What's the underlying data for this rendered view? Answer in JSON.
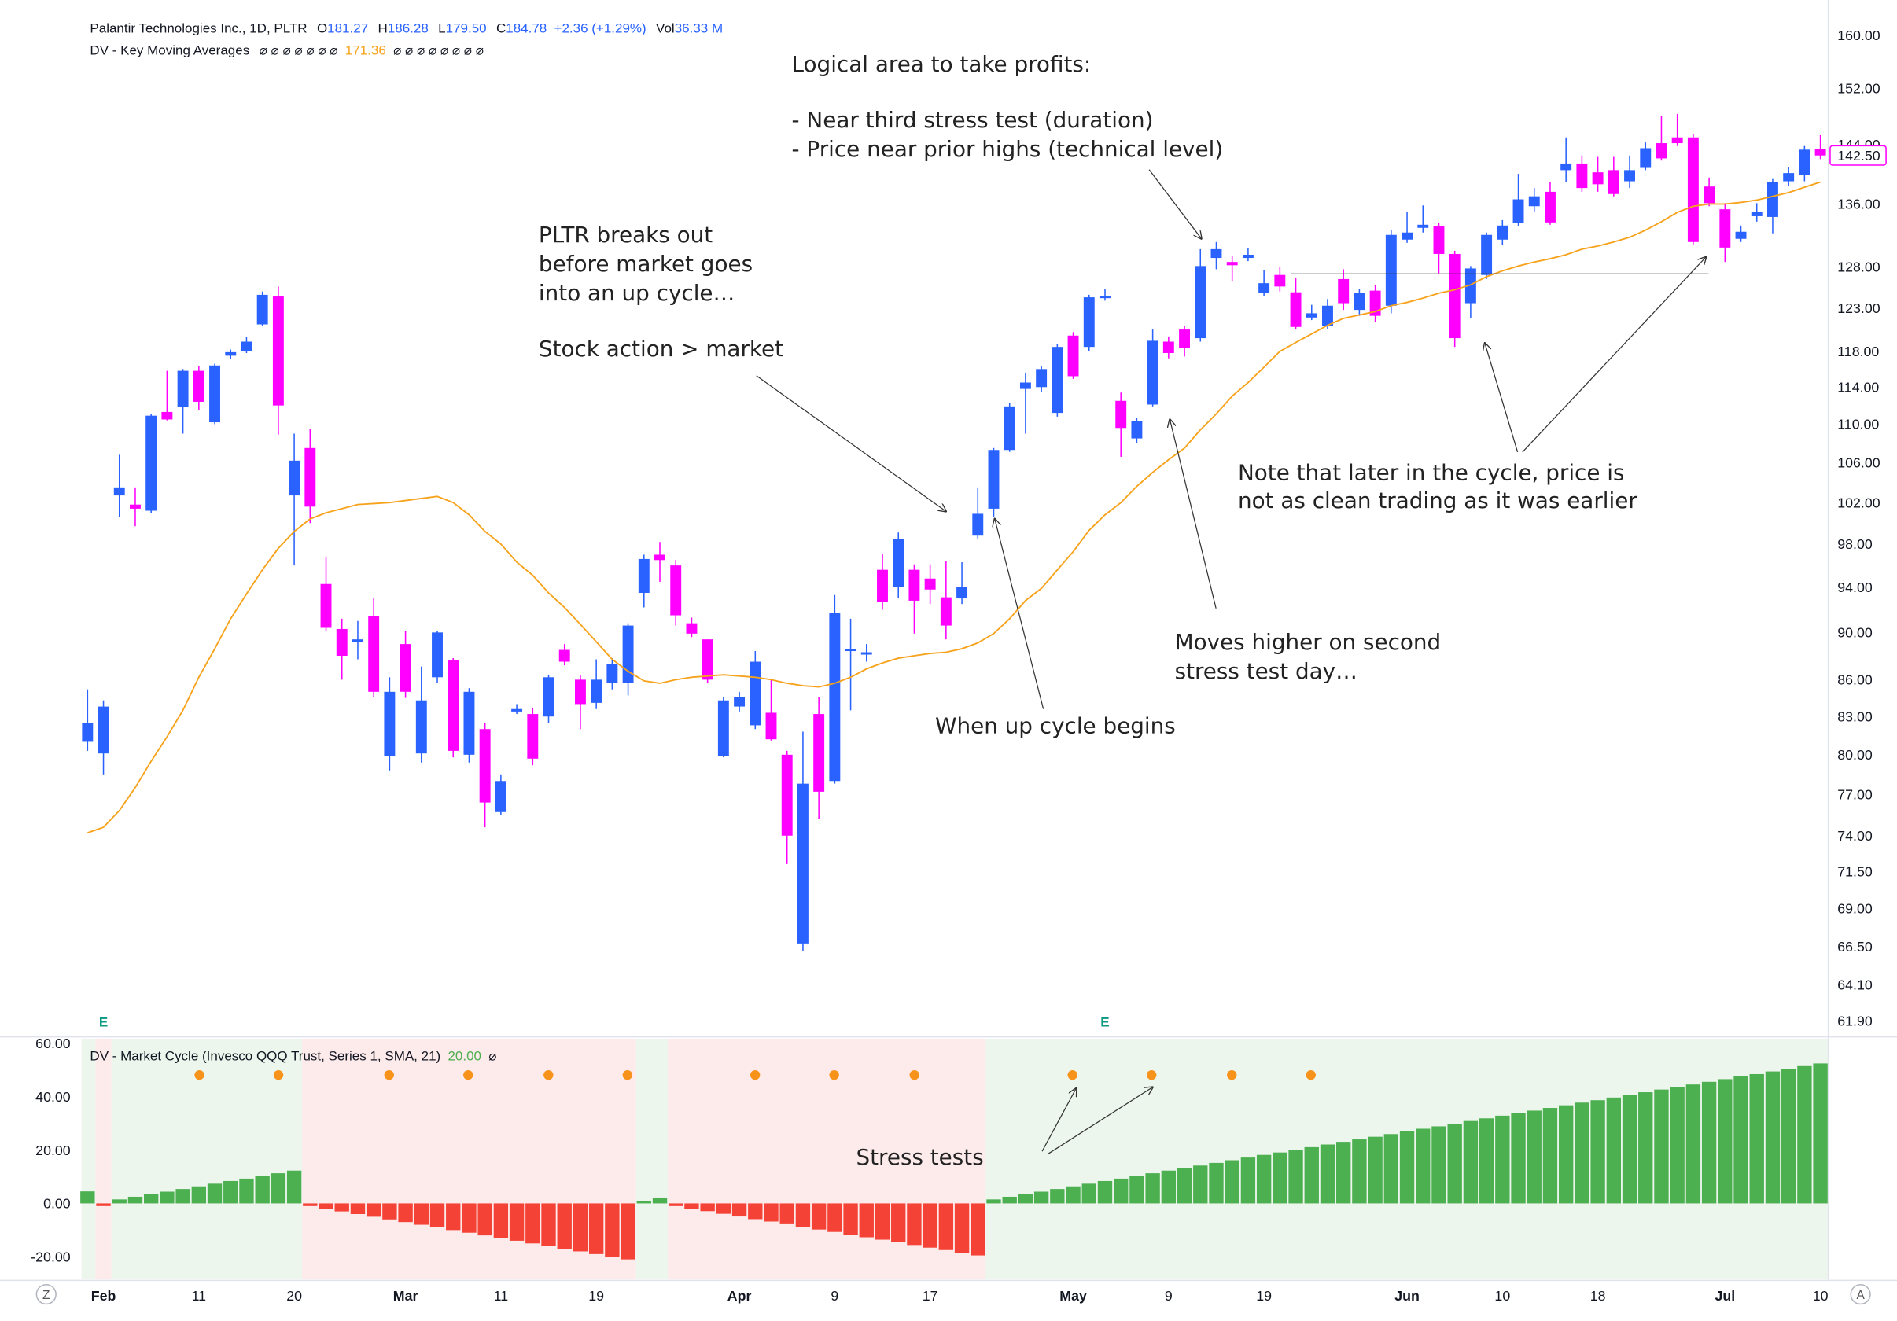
{
  "chart_data": {
    "type": "candlestick",
    "title": "Palantir Technologies Inc., 1D, PLTR",
    "legend_fields": [
      {
        "key": "O",
        "value": "181.27"
      },
      {
        "key": "H",
        "value": "186.28"
      },
      {
        "key": "L",
        "value": "179.50"
      },
      {
        "key": "C",
        "value": "184.78"
      }
    ],
    "change": "+2.36 (+1.29%)",
    "volume": {
      "key": "Vol",
      "value": "36.33 M"
    },
    "categories": [
      null,
      "Feb",
      null,
      null,
      null,
      null,
      null,
      "11",
      null,
      null,
      null,
      null,
      null,
      "20",
      null,
      null,
      null,
      null,
      null,
      null,
      "Mar",
      null,
      null,
      null,
      null,
      null,
      "11",
      null,
      null,
      null,
      null,
      null,
      "19",
      null,
      null,
      null,
      null,
      null,
      null,
      null,
      null,
      "Apr",
      null,
      null,
      null,
      null,
      null,
      "9",
      null,
      null,
      null,
      null,
      null,
      "17",
      null,
      null,
      null,
      null,
      null,
      null,
      null,
      null,
      "May",
      null,
      null,
      null,
      null,
      null,
      "9",
      null,
      null,
      null,
      null,
      null,
      "19",
      null,
      null,
      null,
      null,
      null,
      null,
      null,
      null,
      "Jun",
      null,
      null,
      null,
      null,
      null,
      "10",
      null,
      null,
      null,
      null,
      null,
      "18",
      null,
      null,
      null,
      null,
      null,
      null,
      null,
      "Jul",
      null,
      null,
      null,
      null,
      null,
      "10"
    ],
    "event_labels": [
      null,
      "E",
      null,
      null,
      null,
      null,
      null,
      null,
      null,
      null,
      null,
      null,
      null,
      null,
      null,
      null,
      null,
      null,
      null,
      null,
      null,
      null,
      null,
      null,
      null,
      null,
      null,
      null,
      null,
      null,
      null,
      null,
      null,
      null,
      null,
      null,
      null,
      null,
      null,
      null,
      null,
      null,
      null,
      null,
      null,
      null,
      null,
      null,
      null,
      null,
      null,
      null,
      null,
      null,
      null,
      null,
      null,
      null,
      null,
      null,
      null,
      null,
      null,
      null,
      "E",
      null,
      null,
      null,
      null,
      null,
      null,
      null,
      null,
      null,
      null,
      null,
      null,
      null,
      null,
      null,
      null,
      null,
      null,
      null,
      null,
      null,
      null,
      null,
      null,
      null,
      null,
      null,
      null,
      null,
      null,
      null,
      null,
      null,
      null,
      null,
      null,
      null,
      null,
      null,
      null,
      null,
      null,
      null,
      null,
      null
    ],
    "ohlc": {
      "up_color": "#2962ff",
      "down_color": "#ff00ff",
      "open": [
        81.0,
        80.1,
        102.7,
        101.8,
        101.2,
        111.3,
        111.8,
        115.8,
        110.2,
        117.5,
        118.0,
        121.1,
        124.4,
        102.7,
        107.5,
        94.3,
        90.3,
        89.2,
        91.4,
        79.9,
        89.0,
        80.1,
        86.2,
        87.6,
        80.0,
        82.0,
        75.7,
        83.4,
        83.2,
        83.0,
        88.5,
        86.0,
        84.1,
        85.7,
        85.7,
        93.5,
        97.0,
        96.0,
        90.8,
        89.4,
        79.9,
        83.8,
        82.3,
        83.3,
        80.0,
        66.7,
        83.2,
        78.0,
        88.4,
        88.1,
        95.6,
        94.0,
        95.6,
        94.8,
        93.1,
        93.0,
        98.8,
        101.4,
        107.3,
        113.8,
        114.0,
        111.2,
        119.8,
        118.5,
        124.2,
        112.5,
        108.5,
        112.1,
        119.1,
        120.5,
        119.5,
        129.1,
        128.6,
        129.1,
        124.8,
        127.0,
        124.9,
        121.9,
        120.9,
        126.5,
        122.8,
        125.1,
        123.3,
        131.4,
        132.9,
        133.1,
        129.6,
        123.6,
        127.0,
        131.4,
        133.5,
        135.7,
        137.6,
        140.5,
        141.4,
        140.2,
        140.5,
        139.0,
        140.8,
        144.2,
        145.0,
        145.0,
        138.3,
        135.3,
        131.5,
        134.4,
        134.3,
        139.0,
        139.9,
        143.4
      ],
      "high": [
        85.2,
        84.3,
        106.8,
        103.5,
        111.1,
        115.8,
        116.0,
        116.3,
        116.6,
        118.2,
        119.6,
        125.0,
        125.6,
        109.0,
        109.5,
        96.8,
        91.2,
        91.0,
        93.0,
        86.2,
        90.1,
        87.1,
        90.1,
        87.8,
        85.3,
        82.5,
        78.5,
        84.0,
        83.7,
        86.4,
        89.0,
        86.4,
        87.7,
        87.8,
        90.8,
        97.0,
        98.2,
        96.5,
        91.3,
        89.4,
        84.6,
        85.0,
        88.4,
        86.0,
        80.3,
        81.8,
        84.6,
        93.3,
        91.2,
        89.0,
        97.1,
        99.1,
        96.1,
        96.1,
        96.4,
        96.3,
        103.5,
        107.5,
        112.3,
        115.6,
        116.3,
        118.8,
        120.2,
        124.6,
        125.3,
        113.4,
        110.7,
        120.5,
        119.7,
        120.9,
        130.2,
        131.1,
        129.4,
        130.3,
        127.6,
        128.0,
        126.6,
        123.4,
        124.1,
        127.7,
        125.3,
        125.8,
        132.6,
        135.0,
        135.8,
        133.5,
        130.0,
        128.1,
        132.3,
        133.9,
        140.0,
        138.1,
        138.9,
        145.0,
        142.5,
        142.3,
        142.3,
        142.5,
        144.3,
        148.0,
        148.3,
        145.5,
        139.5,
        136.1,
        133.2,
        136.1,
        139.3,
        140.9,
        143.8,
        145.3
      ],
      "low": [
        80.3,
        78.5,
        100.6,
        99.7,
        101.0,
        110.4,
        109.0,
        111.5,
        110.0,
        117.1,
        117.8,
        120.9,
        108.9,
        96.0,
        100.0,
        90.1,
        86.0,
        87.7,
        84.6,
        78.8,
        84.5,
        79.4,
        85.7,
        79.8,
        79.4,
        74.6,
        75.5,
        83.2,
        79.2,
        82.5,
        87.2,
        82.0,
        83.6,
        85.2,
        84.7,
        92.2,
        94.5,
        90.6,
        89.6,
        85.7,
        79.8,
        83.4,
        82.0,
        81.1,
        72.0,
        66.2,
        75.2,
        77.8,
        83.5,
        87.5,
        92.0,
        93.0,
        89.9,
        92.5,
        89.4,
        92.5,
        98.5,
        100.6,
        107.1,
        109.0,
        113.5,
        110.8,
        114.9,
        118.0,
        123.9,
        106.6,
        108.0,
        111.9,
        117.2,
        117.4,
        119.1,
        127.7,
        126.2,
        128.7,
        124.5,
        125.0,
        120.5,
        121.6,
        120.6,
        122.8,
        122.1,
        121.4,
        122.4,
        131.0,
        132.3,
        127.2,
        118.5,
        121.8,
        126.5,
        130.7,
        133.1,
        135.0,
        133.3,
        138.9,
        137.6,
        137.6,
        137.0,
        138.1,
        140.5,
        141.8,
        143.8,
        130.8,
        135.7,
        128.6,
        131.1,
        133.7,
        132.2,
        138.4,
        139.0,
        142.0
      ],
      "close": [
        82.5,
        83.8,
        103.5,
        101.4,
        110.9,
        110.5,
        115.8,
        112.4,
        116.4,
        117.9,
        119.1,
        124.6,
        112.0,
        106.2,
        101.6,
        90.4,
        88.0,
        89.4,
        85.0,
        85.0,
        85.0,
        84.3,
        90.0,
        80.3,
        85.0,
        76.4,
        78.0,
        83.6,
        79.7,
        86.2,
        87.5,
        84.0,
        86.0,
        87.3,
        90.6,
        96.6,
        96.5,
        91.5,
        89.9,
        86.0,
        84.3,
        84.6,
        87.5,
        81.2,
        74.0,
        77.8,
        77.2,
        91.7,
        88.6,
        88.3,
        92.7,
        98.5,
        92.8,
        93.8,
        90.6,
        94.0,
        100.9,
        107.3,
        111.9,
        114.5,
        116.0,
        118.5,
        115.2,
        124.3,
        124.4,
        109.6,
        110.3,
        119.2,
        117.8,
        118.4,
        128.1,
        130.2,
        128.2,
        129.5,
        126.0,
        125.6,
        120.8,
        122.4,
        123.3,
        123.6,
        124.8,
        122.1,
        132.0,
        132.3,
        133.3,
        129.6,
        119.5,
        127.8,
        132.0,
        133.2,
        136.6,
        137.0,
        133.6,
        141.4,
        138.1,
        138.6,
        137.3,
        140.5,
        143.5,
        142.1,
        144.2,
        131.1,
        136.1,
        130.4,
        132.4,
        135.0,
        138.9,
        140.1,
        143.3,
        142.5
      ]
    },
    "last_price_label": "142.50",
    "moving_average": {
      "name": "DV - Key Moving Averages",
      "symbols_before": "⌀ ⌀ ⌀ ⌀ ⌀ ⌀ ⌀",
      "legend_value": "171.36",
      "symbols_after": "⌀ ⌀ ⌀ ⌀ ⌀ ⌀ ⌀ ⌀",
      "color": "#f7a21b",
      "values": [
        74.2,
        74.6,
        75.8,
        77.5,
        79.5,
        81.4,
        83.5,
        86.2,
        88.6,
        91.2,
        93.4,
        95.6,
        97.6,
        99.2,
        100.4,
        101.0,
        101.4,
        101.8,
        101.9,
        102.0,
        102.2,
        102.4,
        102.6,
        102.0,
        100.8,
        99.2,
        98.0,
        96.3,
        95.1,
        93.5,
        92.2,
        90.7,
        89.2,
        87.7,
        86.7,
        85.9,
        85.7,
        86.0,
        86.2,
        86.3,
        86.4,
        86.3,
        86.2,
        86.0,
        85.7,
        85.5,
        85.4,
        85.7,
        86.2,
        86.9,
        87.4,
        87.8,
        88.0,
        88.2,
        88.3,
        88.6,
        89.1,
        89.9,
        91.2,
        92.8,
        93.9,
        95.6,
        97.3,
        99.3,
        100.8,
        102.0,
        103.6,
        105.0,
        106.3,
        107.5,
        109.4,
        111.1,
        113.0,
        114.5,
        116.2,
        118.0,
        119.0,
        120.0,
        121.0,
        121.8,
        122.2,
        122.6,
        123.3,
        123.7,
        124.2,
        124.8,
        125.2,
        125.8,
        126.8,
        127.5,
        128.1,
        128.6,
        129.0,
        129.5,
        130.2,
        130.6,
        131.1,
        131.7,
        132.6,
        133.7,
        134.9,
        135.7,
        136.0,
        136.0,
        136.2,
        136.5,
        137.0,
        137.5,
        138.2,
        138.9
      ]
    },
    "log_scale": true,
    "ylim": [
      61.0,
      163.6
    ],
    "yticks": [
      {
        "value": 160,
        "label": "160.00"
      },
      {
        "value": 152,
        "label": "152.00"
      },
      {
        "value": 144,
        "label": "144.00"
      },
      {
        "value": 136,
        "label": "136.00"
      },
      {
        "value": 128,
        "label": "128.00"
      },
      {
        "value": 123,
        "label": "123.00"
      },
      {
        "value": 118,
        "label": "118.00"
      },
      {
        "value": 114,
        "label": "114.00"
      },
      {
        "value": 110,
        "label": "110.00"
      },
      {
        "value": 106,
        "label": "106.00"
      },
      {
        "value": 102,
        "label": "102.00"
      },
      {
        "value": 98,
        "label": "98.00"
      },
      {
        "value": 94,
        "label": "94.00"
      },
      {
        "value": 90,
        "label": "90.00"
      },
      {
        "value": 86,
        "label": "86.00"
      },
      {
        "value": 83,
        "label": "83.00"
      },
      {
        "value": 80,
        "label": "80.00"
      },
      {
        "value": 77,
        "label": "77.00"
      },
      {
        "value": 74,
        "label": "74.00"
      },
      {
        "value": 71.5,
        "label": "71.50"
      },
      {
        "value": 69,
        "label": "69.00"
      },
      {
        "value": 66.5,
        "label": "66.50"
      },
      {
        "value": 64.1,
        "label": "64.10"
      },
      {
        "value": 61.9,
        "label": "61.90"
      }
    ],
    "annotations": [
      [
        "Logical area to take profits:"
      ],
      [
        "- Near third stress test (duration)",
        "- Price near prior highs (technical level)"
      ],
      [
        "PLTR breaks out",
        "before market goes",
        "into an up cycle…"
      ],
      [
        "Stock action > market"
      ],
      [
        "Note that later in the cycle, price is",
        "not as clean trading as it was earlier"
      ],
      [
        "Moves higher on second",
        "stress test day…"
      ],
      [
        "When up cycle begins"
      ],
      [
        "Stress tests"
      ]
    ],
    "indicator": {
      "type": "bar",
      "title": "DV - Market Cycle (Invesco QQQ Trust, Series 1, SMA, 21)",
      "value_label": "20.00",
      "symbol": "⌀",
      "positive_color": "#4caf50",
      "negative_color": "#f44336",
      "positive_shade": "#edf6ed",
      "negative_shade": "#fdeaea",
      "ylim": [
        -28.2,
        61.8
      ],
      "yticks": [
        {
          "value": 60,
          "label": "60.00"
        },
        {
          "value": 40,
          "label": "40.00"
        },
        {
          "value": 20,
          "label": "20.00"
        },
        {
          "value": 0,
          "label": "0.00"
        },
        {
          "value": -20,
          "label": "-20.00"
        }
      ],
      "values": [
        4.5,
        -1.0,
        1.5,
        2.5,
        3.5,
        4.4,
        5.4,
        6.4,
        7.4,
        8.4,
        9.3,
        10.3,
        11.3,
        12.3,
        -1.0,
        -2.0,
        -3.0,
        -4.0,
        -5.0,
        -6.0,
        -7.0,
        -8.0,
        -9.0,
        -10.0,
        -11.0,
        -12.0,
        -13.0,
        -14.0,
        -15.0,
        -16.0,
        -17.0,
        -18.0,
        -19.0,
        -20.0,
        -21.0,
        1.0,
        2.2,
        -1.0,
        -2.0,
        -2.9,
        -3.9,
        -4.9,
        -5.9,
        -6.8,
        -7.8,
        -8.8,
        -9.8,
        -10.7,
        -11.7,
        -12.7,
        -13.6,
        -14.6,
        -15.6,
        -16.6,
        -17.5,
        -18.5,
        -19.5,
        1.5,
        2.5,
        3.5,
        4.4,
        5.4,
        6.4,
        7.4,
        8.4,
        9.3,
        10.3,
        11.3,
        12.3,
        13.3,
        14.2,
        15.2,
        16.2,
        17.2,
        18.2,
        19.1,
        20.1,
        21.1,
        22.1,
        23.1,
        24.0,
        25.0,
        26.0,
        27.0,
        28.0,
        28.9,
        29.9,
        30.9,
        31.9,
        32.9,
        33.8,
        34.8,
        35.8,
        36.8,
        37.8,
        38.7,
        39.7,
        40.7,
        41.7,
        42.7,
        43.6,
        44.6,
        45.6,
        46.6,
        47.6,
        48.5,
        49.5,
        50.5,
        51.5,
        52.5
      ]
    },
    "corner_buttons": [
      "Z",
      "A"
    ]
  }
}
